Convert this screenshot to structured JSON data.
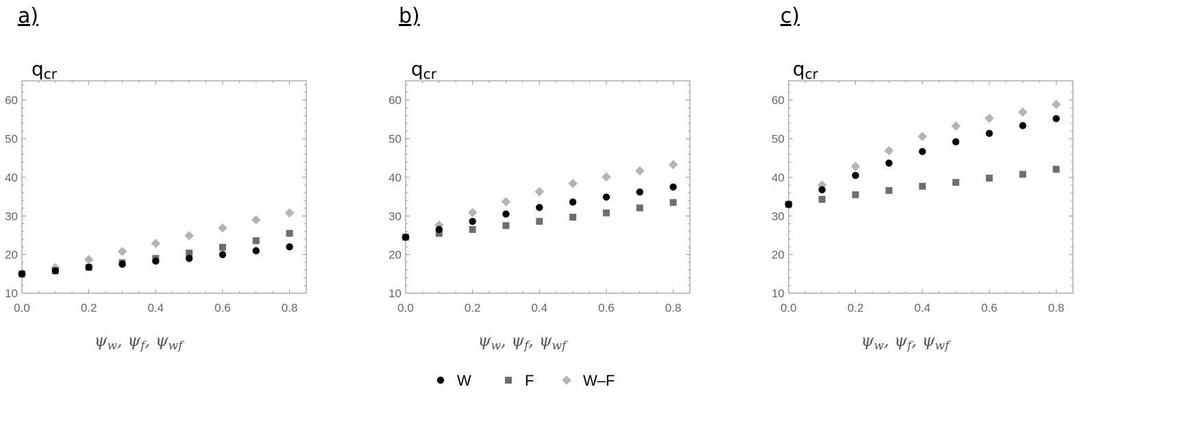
{
  "chart_data": [
    {
      "type": "scatter",
      "panel_label": "a)",
      "ylabel_main": "q",
      "ylabel_sub": "cr",
      "xlabel_parts": [
        {
          "main": "ψ",
          "sub": "w"
        },
        {
          "main": "ψ",
          "sub": "f"
        },
        {
          "main": "ψ",
          "sub": "wf"
        }
      ],
      "xlim": [
        0,
        0.85
      ],
      "ylim": [
        10,
        65
      ],
      "xticks": [
        "0.0",
        "0.2",
        "0.4",
        "0.6",
        "0.8"
      ],
      "yticks": [
        "10",
        "20",
        "30",
        "40",
        "50",
        "60"
      ],
      "x": [
        0.0,
        0.1,
        0.2,
        0.3,
        0.4,
        0.5,
        0.6,
        0.7,
        0.8
      ],
      "series": [
        {
          "name": "W",
          "marker": "circle",
          "color": "#000000",
          "values": [
            15.0,
            15.8,
            16.7,
            17.5,
            18.3,
            19.0,
            20.0,
            21.0,
            22.0
          ]
        },
        {
          "name": "F",
          "marker": "square",
          "color": "#6e6e6e",
          "values": [
            15.0,
            15.8,
            16.7,
            17.9,
            19.0,
            20.4,
            21.9,
            23.6,
            25.5
          ]
        },
        {
          "name": "W–F",
          "marker": "diamond",
          "color": "#b4b4b4",
          "values": [
            15.0,
            16.6,
            18.7,
            20.8,
            22.9,
            24.9,
            26.9,
            29.0,
            30.8
          ]
        }
      ]
    },
    {
      "type": "scatter",
      "panel_label": "b)",
      "ylabel_main": "q",
      "ylabel_sub": "cr",
      "xlabel_parts": [
        {
          "main": "ψ",
          "sub": "w"
        },
        {
          "main": "ψ",
          "sub": "f"
        },
        {
          "main": "ψ",
          "sub": "wf"
        }
      ],
      "xlim": [
        0,
        0.85
      ],
      "ylim": [
        10,
        65
      ],
      "xticks": [
        "0.0",
        "0.2",
        "0.4",
        "0.6",
        "0.8"
      ],
      "yticks": [
        "10",
        "20",
        "30",
        "40",
        "50",
        "60"
      ],
      "x": [
        0.0,
        0.1,
        0.2,
        0.3,
        0.4,
        0.5,
        0.6,
        0.7,
        0.8
      ],
      "series": [
        {
          "name": "W",
          "marker": "circle",
          "color": "#000000",
          "values": [
            24.5,
            26.5,
            28.6,
            30.5,
            32.2,
            33.6,
            34.9,
            36.2,
            37.5
          ]
        },
        {
          "name": "F",
          "marker": "square",
          "color": "#6e6e6e",
          "values": [
            24.5,
            25.5,
            26.5,
            27.5,
            28.6,
            29.7,
            30.8,
            32.1,
            33.5
          ]
        },
        {
          "name": "W–F",
          "marker": "diamond",
          "color": "#b4b4b4",
          "values": [
            24.5,
            27.6,
            30.9,
            33.7,
            36.3,
            38.4,
            40.1,
            41.7,
            43.3
          ]
        }
      ]
    },
    {
      "type": "scatter",
      "panel_label": "c)",
      "ylabel_main": "q",
      "ylabel_sub": "cr",
      "xlabel_parts": [
        {
          "main": "ψ",
          "sub": "w"
        },
        {
          "main": "ψ",
          "sub": "f"
        },
        {
          "main": "ψ",
          "sub": "wf"
        }
      ],
      "xlim": [
        0,
        0.85
      ],
      "ylim": [
        10,
        65
      ],
      "xticks": [
        "0.0",
        "0.2",
        "0.4",
        "0.6",
        "0.8"
      ],
      "yticks": [
        "10",
        "20",
        "30",
        "40",
        "50",
        "60"
      ],
      "x": [
        0.0,
        0.1,
        0.2,
        0.3,
        0.4,
        0.5,
        0.6,
        0.7,
        0.8
      ],
      "series": [
        {
          "name": "W",
          "marker": "circle",
          "color": "#000000",
          "values": [
            33.0,
            36.8,
            40.5,
            43.7,
            46.7,
            49.2,
            51.4,
            53.4,
            55.2
          ]
        },
        {
          "name": "F",
          "marker": "square",
          "color": "#6e6e6e",
          "values": [
            33.0,
            34.3,
            35.5,
            36.6,
            37.7,
            38.7,
            39.8,
            40.8,
            42.1
          ]
        },
        {
          "name": "W–F",
          "marker": "diamond",
          "color": "#b4b4b4",
          "values": [
            33.0,
            38.0,
            42.8,
            46.9,
            50.6,
            53.3,
            55.3,
            56.9,
            58.9
          ]
        }
      ]
    }
  ],
  "legend": {
    "placement": "bottom-center",
    "items": [
      {
        "label": "W",
        "marker": "circle",
        "color": "#000000"
      },
      {
        "label": "F",
        "marker": "square",
        "color": "#6e6e6e"
      },
      {
        "label": "W–F",
        "marker": "diamond",
        "color": "#b4b4b4"
      }
    ]
  }
}
